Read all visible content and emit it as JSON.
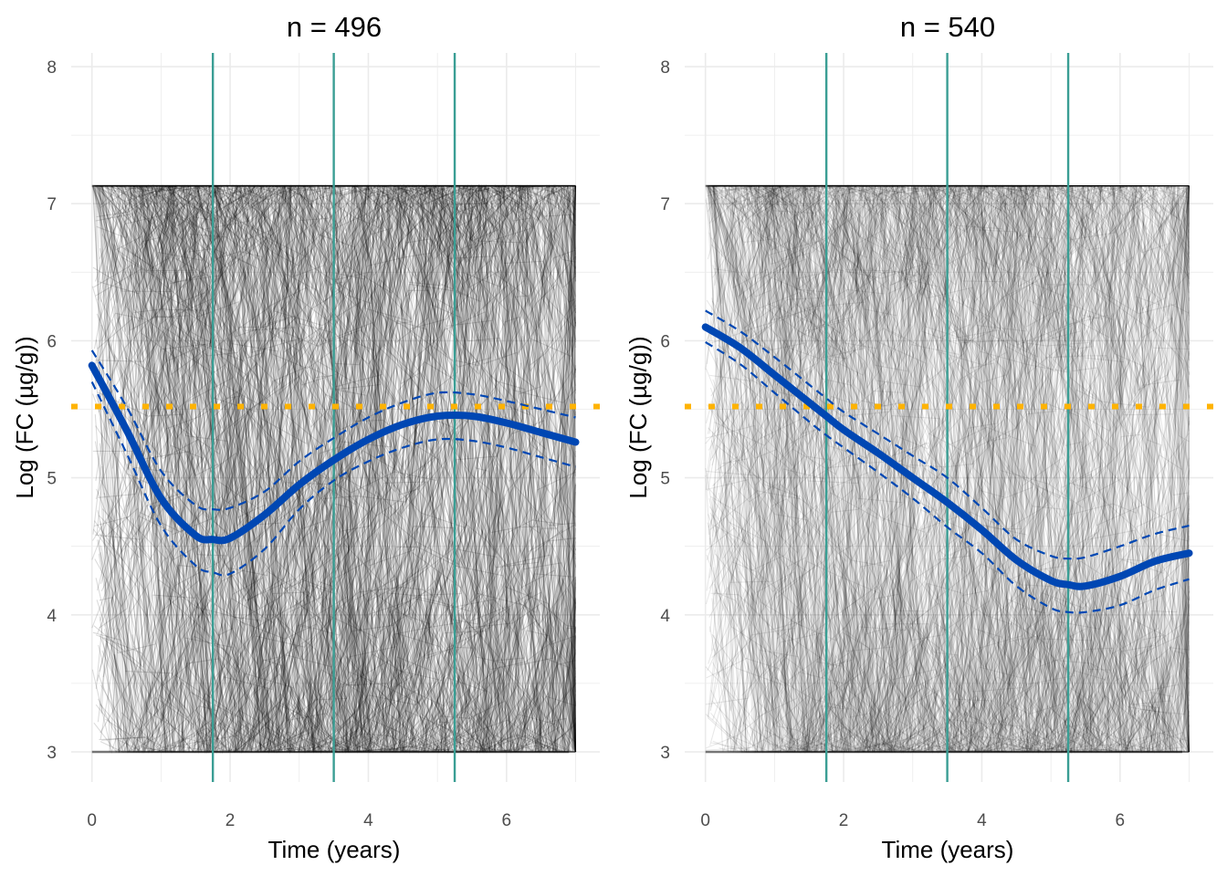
{
  "chart_data": [
    {
      "type": "line",
      "title": "n = 496",
      "xlabel": "Time (years)",
      "ylabel": "Log (FC (µg/g))",
      "xlim": [
        -0.3,
        7.35
      ],
      "ylim": [
        2.78,
        8.1
      ],
      "xticks": [
        0,
        2,
        4,
        6
      ],
      "yticks": [
        3,
        4,
        5,
        6,
        7,
        8
      ],
      "grid": true,
      "legend": "none",
      "n_trajectories": 496,
      "trajectory_range": [
        3.0,
        7.13
      ],
      "vertical_lines": [
        1.75,
        3.5,
        5.25
      ],
      "reference_line": 5.52,
      "fit": {
        "x": [
          0,
          0.5,
          1,
          1.5,
          1.75,
          2,
          2.5,
          3,
          3.5,
          4,
          4.5,
          5,
          5.5,
          6,
          6.5,
          7
        ],
        "y": [
          5.82,
          5.35,
          4.85,
          4.58,
          4.55,
          4.56,
          4.73,
          4.95,
          5.13,
          5.28,
          5.39,
          5.45,
          5.45,
          5.4,
          5.33,
          5.26
        ]
      },
      "ci_upper": {
        "x": [
          0,
          0.5,
          1,
          1.5,
          1.75,
          2,
          2.5,
          3,
          3.5,
          4,
          4.5,
          5,
          5.5,
          6,
          6.5,
          7
        ],
        "y": [
          5.93,
          5.52,
          5.05,
          4.8,
          4.77,
          4.78,
          4.9,
          5.12,
          5.29,
          5.44,
          5.55,
          5.62,
          5.61,
          5.56,
          5.5,
          5.44
        ]
      },
      "ci_lower": {
        "x": [
          0,
          0.5,
          1,
          1.5,
          1.75,
          2,
          2.5,
          3,
          3.5,
          4,
          4.5,
          5,
          5.5,
          6,
          6.5,
          7
        ],
        "y": [
          5.7,
          5.18,
          4.65,
          4.36,
          4.31,
          4.3,
          4.48,
          4.77,
          4.98,
          5.12,
          5.22,
          5.28,
          5.27,
          5.22,
          5.15,
          5.08
        ]
      },
      "colors": {
        "fit": "#0047b3",
        "vertical": "#3a9e94",
        "reference": "#ffb300",
        "trajectory": "#000000"
      }
    },
    {
      "type": "line",
      "title": "n = 540",
      "xlabel": "Time (years)",
      "ylabel": "Log (FC (µg/g))",
      "xlim": [
        -0.3,
        7.35
      ],
      "ylim": [
        2.78,
        8.1
      ],
      "xticks": [
        0,
        2,
        4,
        6
      ],
      "yticks": [
        3,
        4,
        5,
        6,
        7,
        8
      ],
      "grid": true,
      "legend": "none",
      "n_trajectories": 540,
      "trajectory_range": [
        3.0,
        7.13
      ],
      "vertical_lines": [
        1.75,
        3.5,
        5.25
      ],
      "reference_line": 5.52,
      "fit": {
        "x": [
          0,
          0.5,
          1,
          1.5,
          1.75,
          2,
          2.5,
          3,
          3.5,
          4,
          4.5,
          5,
          5.25,
          5.5,
          6,
          6.5,
          7
        ],
        "y": [
          6.1,
          5.95,
          5.75,
          5.55,
          5.45,
          5.35,
          5.18,
          5.0,
          4.82,
          4.62,
          4.4,
          4.25,
          4.22,
          4.21,
          4.28,
          4.39,
          4.45
        ]
      },
      "ci_upper": {
        "x": [
          0,
          0.5,
          1,
          1.5,
          1.75,
          2,
          2.5,
          3,
          3.5,
          4,
          4.5,
          5,
          5.25,
          5.5,
          6,
          6.5,
          7
        ],
        "y": [
          6.22,
          6.07,
          5.88,
          5.68,
          5.58,
          5.48,
          5.32,
          5.16,
          5.0,
          4.78,
          4.55,
          4.43,
          4.41,
          4.42,
          4.5,
          4.59,
          4.65
        ]
      },
      "ci_lower": {
        "x": [
          0,
          0.5,
          1,
          1.5,
          1.75,
          2,
          2.5,
          3,
          3.5,
          4,
          4.5,
          5,
          5.25,
          5.5,
          6,
          6.5,
          7
        ],
        "y": [
          5.99,
          5.83,
          5.62,
          5.41,
          5.31,
          5.22,
          5.04,
          4.85,
          4.64,
          4.45,
          4.21,
          4.05,
          4.02,
          4.02,
          4.07,
          4.18,
          4.26
        ]
      },
      "colors": {
        "fit": "#0047b3",
        "vertical": "#3a9e94",
        "reference": "#ffb300",
        "trajectory": "#000000"
      }
    }
  ]
}
